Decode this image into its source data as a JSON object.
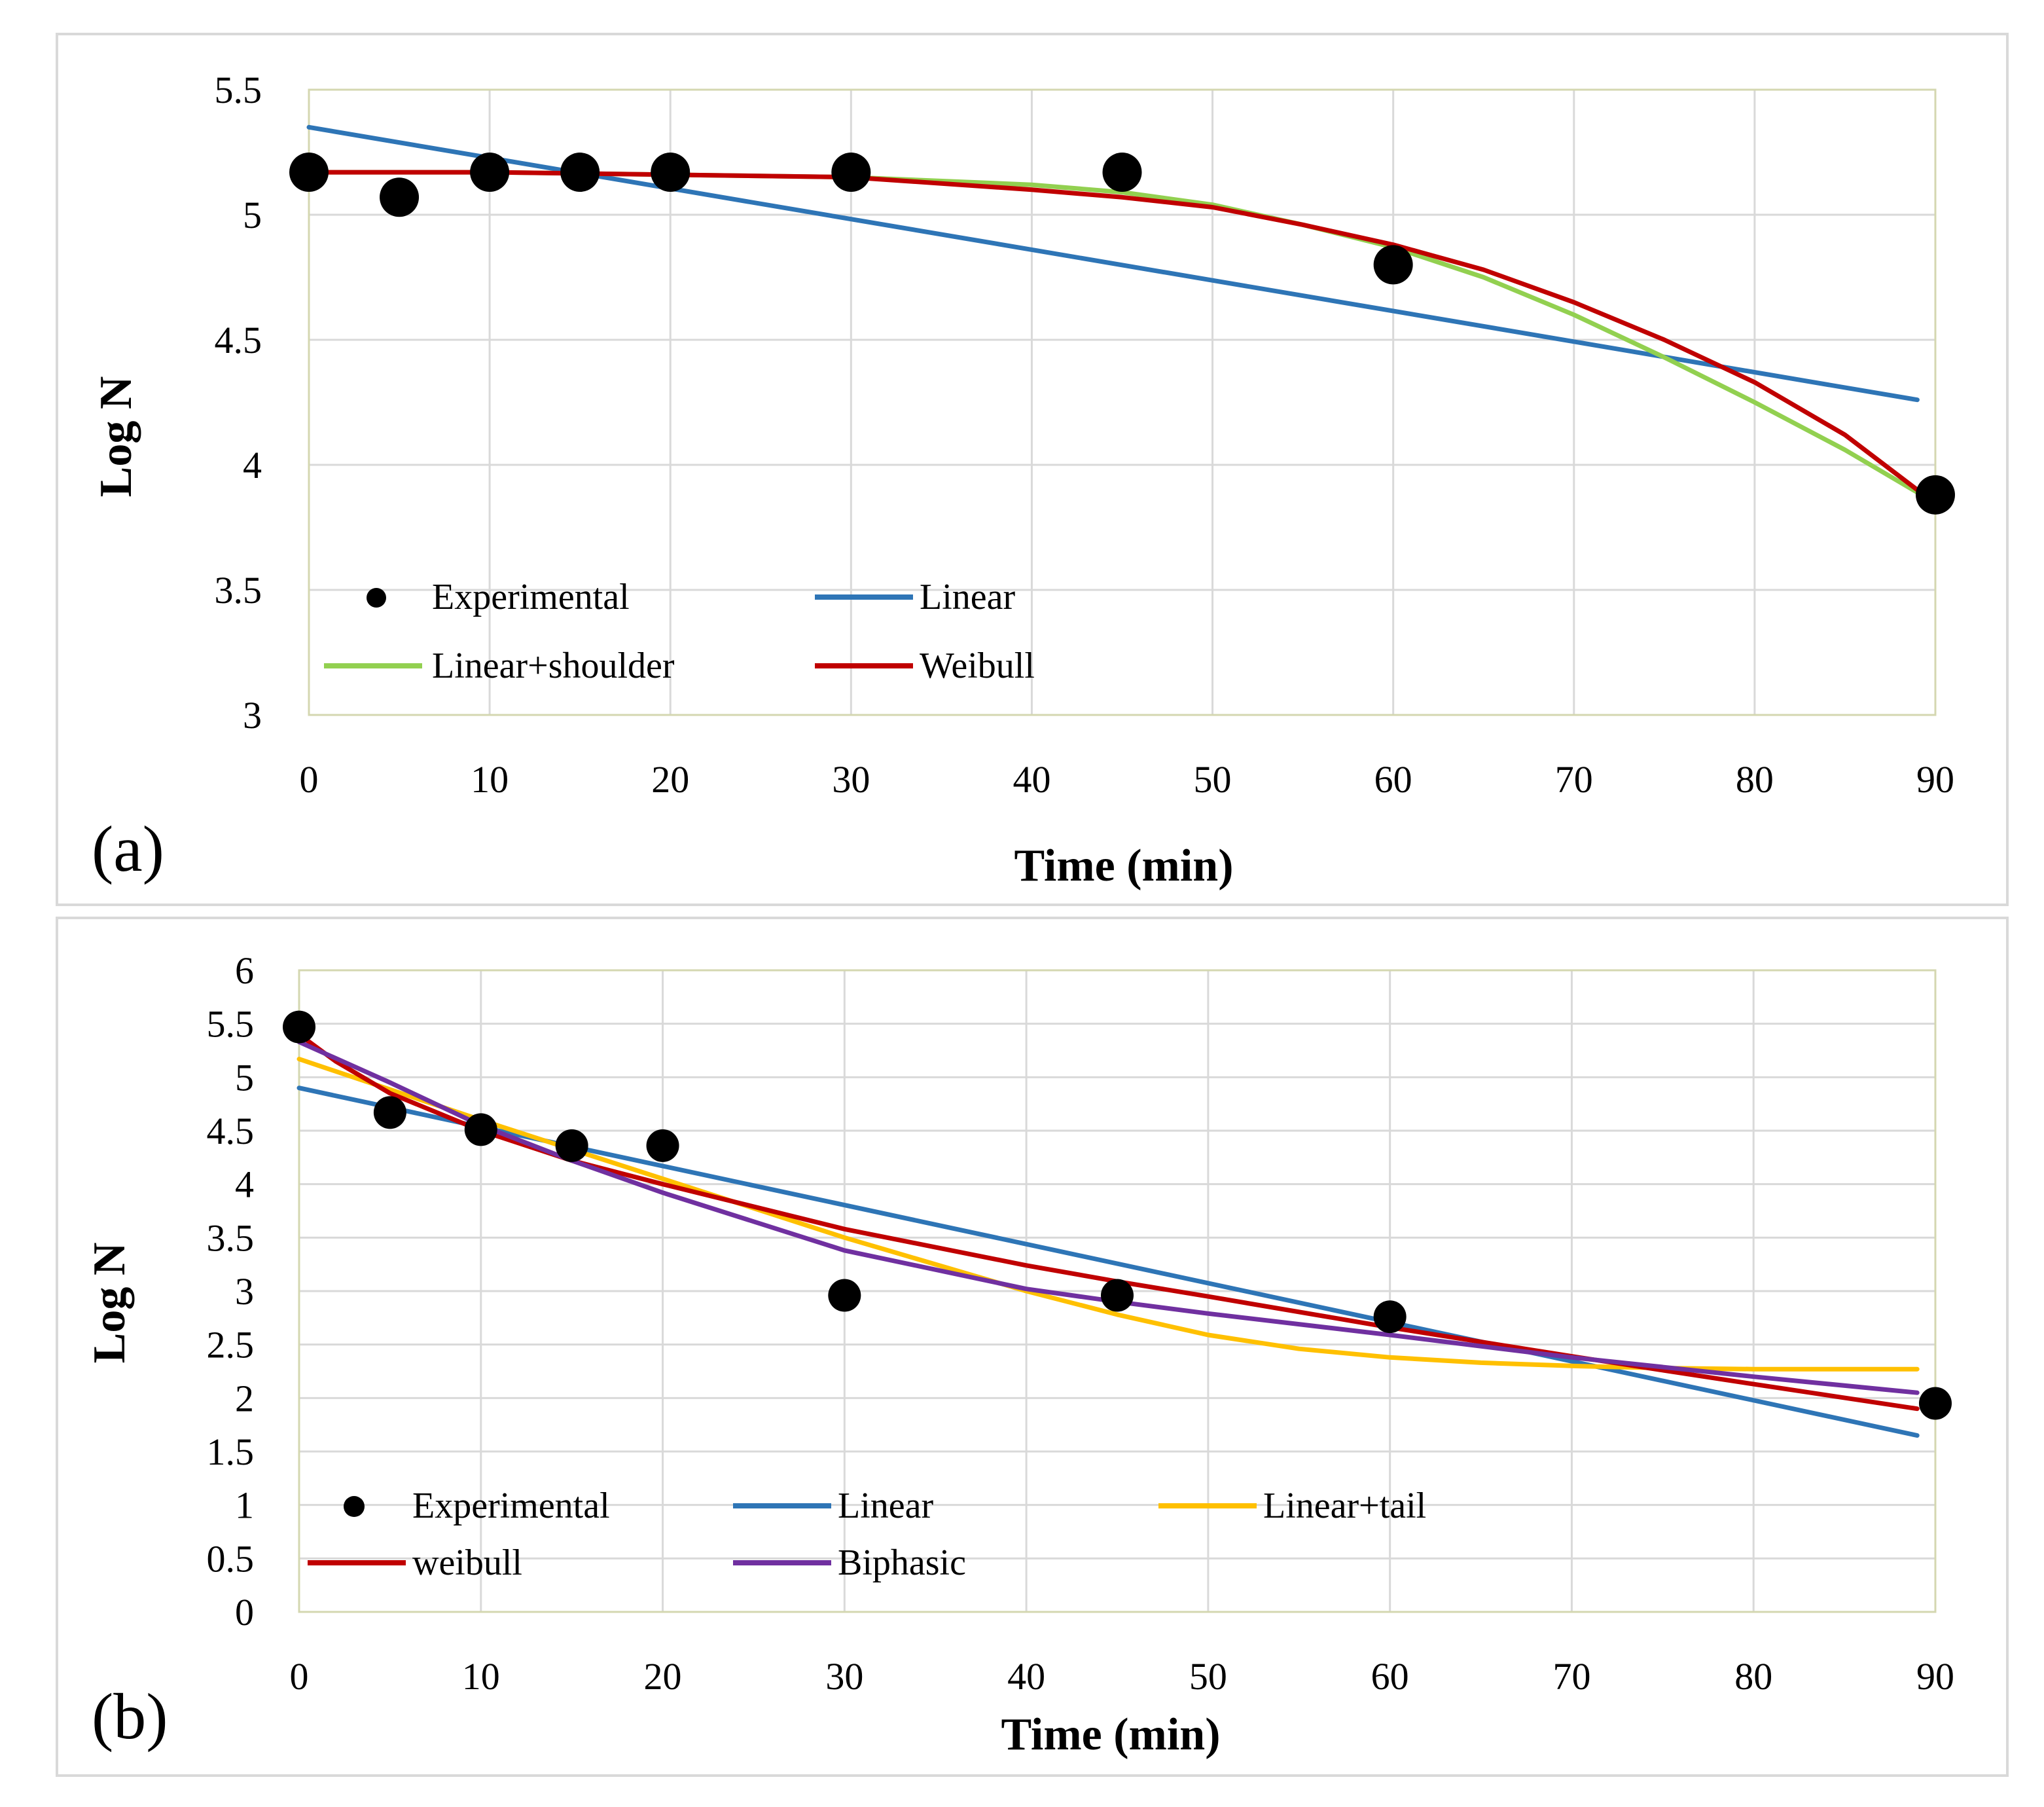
{
  "chart_data": [
    {
      "type": "line",
      "panel_label": "(a)",
      "xlabel": "Time (min)",
      "ylabel": "Log N",
      "xlim": [
        0,
        90
      ],
      "ylim": [
        3,
        5.5
      ],
      "xticks": [
        "0",
        "10",
        "20",
        "30",
        "40",
        "50",
        "60",
        "70",
        "80",
        "90"
      ],
      "yticks": [
        "3",
        "3.5",
        "4",
        "4.5",
        "5",
        "5.5"
      ],
      "legend_position": "bottom-left",
      "scatter": {
        "name": "Experimental",
        "x": [
          0,
          5,
          10,
          15,
          20,
          30,
          45,
          60,
          90
        ],
        "y": [
          5.17,
          5.07,
          5.17,
          5.17,
          5.17,
          5.17,
          5.17,
          4.8,
          3.88
        ]
      },
      "series": [
        {
          "name": "Linear",
          "color": "#2e75b6",
          "x": [
            0,
            89
          ],
          "y": [
            5.35,
            4.26
          ]
        },
        {
          "name": "Linear+shoulder",
          "color": "#92d050",
          "x": [
            0,
            10,
            20,
            30,
            40,
            45,
            50,
            55,
            60,
            65,
            70,
            75,
            80,
            85,
            89
          ],
          "y": [
            5.17,
            5.17,
            5.16,
            5.15,
            5.12,
            5.09,
            5.04,
            4.96,
            4.87,
            4.75,
            4.6,
            4.43,
            4.25,
            4.06,
            3.89
          ]
        },
        {
          "name": "Weibull",
          "color": "#c00000",
          "x": [
            0,
            10,
            20,
            30,
            40,
            45,
            50,
            55,
            60,
            65,
            70,
            75,
            80,
            85,
            89
          ],
          "y": [
            5.17,
            5.17,
            5.16,
            5.15,
            5.1,
            5.07,
            5.03,
            4.96,
            4.88,
            4.78,
            4.65,
            4.5,
            4.33,
            4.12,
            3.9
          ]
        }
      ]
    },
    {
      "type": "line",
      "panel_label": "(b)",
      "xlabel": "Time (min)",
      "ylabel": "Log N",
      "xlim": [
        0,
        90
      ],
      "ylim": [
        0,
        6
      ],
      "xticks": [
        "0",
        "10",
        "20",
        "30",
        "40",
        "50",
        "60",
        "70",
        "80",
        "90"
      ],
      "yticks": [
        "0",
        "0.5",
        "1",
        "1.5",
        "2",
        "2.5",
        "3",
        "3.5",
        "4",
        "4.5",
        "5",
        "5.5",
        "6"
      ],
      "legend_position": "bottom-left",
      "scatter": {
        "name": "Experimental",
        "x": [
          0,
          5,
          10,
          15,
          20,
          30,
          45,
          60,
          90
        ],
        "y": [
          5.47,
          4.67,
          4.51,
          4.36,
          4.36,
          2.96,
          2.96,
          2.76,
          1.95
        ]
      },
      "series": [
        {
          "name": "Linear",
          "color": "#2e75b6",
          "x": [
            0,
            89
          ],
          "y": [
            4.9,
            1.65
          ]
        },
        {
          "name": "Linear+tail",
          "color": "#ffc000",
          "x": [
            0,
            10,
            20,
            30,
            40,
            45,
            50,
            55,
            60,
            65,
            70,
            75,
            80,
            89
          ],
          "y": [
            5.17,
            4.6,
            4.05,
            3.5,
            3.0,
            2.78,
            2.59,
            2.46,
            2.38,
            2.33,
            2.3,
            2.28,
            2.27,
            2.27
          ]
        },
        {
          "name": "weibull",
          "color": "#c00000",
          "x": [
            0,
            2,
            5,
            10,
            15,
            20,
            30,
            40,
            45,
            50,
            60,
            70,
            80,
            89
          ],
          "y": [
            5.4,
            5.15,
            4.85,
            4.5,
            4.22,
            4.0,
            3.58,
            3.24,
            3.09,
            2.95,
            2.66,
            2.39,
            2.13,
            1.9
          ]
        },
        {
          "name": "Biphasic",
          "color": "#7030a0",
          "x": [
            0,
            5,
            10,
            15,
            20,
            30,
            40,
            45,
            50,
            60,
            70,
            80,
            89
          ],
          "y": [
            5.33,
            4.95,
            4.55,
            4.22,
            3.92,
            3.38,
            3.02,
            2.9,
            2.79,
            2.59,
            2.38,
            2.2,
            2.05
          ]
        }
      ]
    }
  ]
}
